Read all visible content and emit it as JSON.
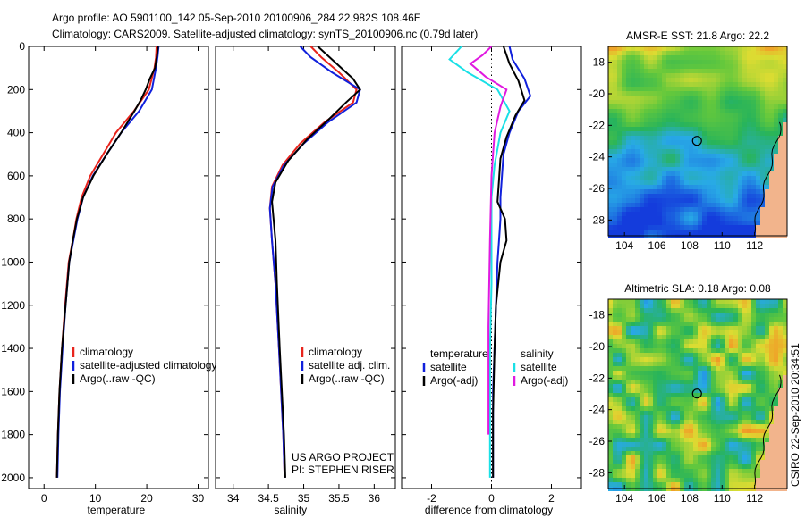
{
  "header": {
    "line1": "Argo profile: AO 5901100_142 05-Sep-2010 20100906_284 22.982S 108.46E",
    "line2": "Climatology: CARS2009. Satellite-adjusted climatology: synTS_20100906.nc (0.79d later)"
  },
  "colors": {
    "climatology": "#e8241c",
    "satellite": "#1020dc",
    "argo": "#000000",
    "cyan": "#19e0e6",
    "magenta": "#e019e0",
    "circle": "#000000"
  },
  "chart_data": [
    {
      "type": "line",
      "xlabel": "temperature",
      "ylabel": "",
      "xlim": [
        -3,
        32
      ],
      "ylim": [
        2050,
        0
      ],
      "xticks": [
        "0",
        "10",
        "20",
        "30"
      ],
      "yticks": [
        "0",
        "200",
        "400",
        "600",
        "800",
        "1000",
        "1200",
        "1400",
        "1600",
        "1800",
        "2000"
      ],
      "legend": [
        "climatology",
        "satellite-adjusted climatology",
        "Argo(..raw -QC)"
      ],
      "series": [
        {
          "name": "climatology",
          "color_key": "climatology",
          "x": [
            21.9,
            21.8,
            21.5,
            20.4,
            17.5,
            14.0,
            11.5,
            9.0,
            7.3,
            6.3,
            5.6,
            4.8,
            4.1,
            3.5,
            3.0,
            2.7,
            2.5
          ],
          "y": [
            0,
            50,
            100,
            200,
            300,
            400,
            500,
            600,
            700,
            800,
            900,
            1000,
            1200,
            1400,
            1600,
            1800,
            2000
          ]
        },
        {
          "name": "satellite-adjusted climatology",
          "color_key": "satellite",
          "x": [
            22.3,
            22.1,
            21.8,
            21.0,
            18.5,
            15.0,
            12.2,
            9.5,
            7.6,
            6.5,
            5.7,
            4.9,
            4.2,
            3.6,
            3.1,
            2.8,
            2.6
          ],
          "y": [
            0,
            50,
            100,
            200,
            300,
            400,
            500,
            600,
            700,
            800,
            900,
            1000,
            1200,
            1400,
            1600,
            1800,
            2000
          ]
        },
        {
          "name": "Argo(..raw -QC)",
          "color_key": "argo",
          "x": [
            22.2,
            22.0,
            21.6,
            20.6,
            19.8,
            18.8,
            17.6,
            15.0,
            12.2,
            9.6,
            7.6,
            6.4,
            5.6,
            4.9,
            4.2,
            3.5,
            3.0,
            2.7,
            2.5
          ],
          "y": [
            0,
            40,
            100,
            150,
            200,
            250,
            300,
            400,
            500,
            600,
            700,
            800,
            900,
            1000,
            1200,
            1400,
            1600,
            1800,
            2000
          ]
        }
      ]
    },
    {
      "type": "line",
      "xlabel": "salinity",
      "xlim": [
        33.75,
        36.3
      ],
      "ylim": [
        2050,
        0
      ],
      "xticks": [
        "34",
        "34.5",
        "35",
        "35.5",
        "36"
      ],
      "legend": [
        "climatology",
        "satellite adj. clim.",
        "Argo(..raw -QC)"
      ],
      "annotation": [
        "US ARGO PROJECT",
        "PI: STEPHEN RISER"
      ],
      "series": [
        {
          "name": "climatology",
          "color_key": "climatology",
          "x": [
            35.1,
            35.25,
            35.5,
            35.75,
            35.7,
            35.3,
            34.95,
            34.7,
            34.55,
            34.52,
            34.55,
            34.6,
            34.65,
            34.68,
            34.71,
            34.73
          ],
          "y": [
            0,
            50,
            120,
            200,
            260,
            350,
            450,
            550,
            650,
            750,
            900,
            1100,
            1400,
            1600,
            1800,
            2000
          ]
        },
        {
          "name": "satellite adj. clim.",
          "color_key": "satellite",
          "x": [
            34.95,
            35.1,
            35.4,
            35.8,
            35.75,
            35.35,
            35.0,
            34.72,
            34.56,
            34.52,
            34.55,
            34.6,
            34.65,
            34.68,
            34.71,
            34.73
          ],
          "y": [
            0,
            50,
            120,
            200,
            260,
            350,
            450,
            550,
            650,
            750,
            900,
            1100,
            1400,
            1600,
            1800,
            2000
          ]
        },
        {
          "name": "Argo(..raw -QC)",
          "color_key": "argo",
          "x": [
            35.2,
            35.4,
            35.7,
            35.8,
            35.6,
            35.35,
            35.05,
            34.78,
            34.6,
            34.55,
            34.6,
            34.62,
            34.66,
            34.69,
            34.72,
            34.74
          ],
          "y": [
            0,
            60,
            150,
            200,
            260,
            340,
            430,
            530,
            630,
            720,
            900,
            1100,
            1400,
            1600,
            1800,
            2000
          ]
        }
      ]
    },
    {
      "type": "line",
      "xlabel": "difference from climatology",
      "xlim": [
        -3,
        3
      ],
      "ylim": [
        2050,
        0
      ],
      "xticks": [
        "-2",
        "0",
        "2"
      ],
      "legend_temperature": [
        "temperature",
        "satellite",
        "Argo(-adj)"
      ],
      "legend_salinity": [
        "salinity",
        "satellite",
        "Argo(-adj)"
      ],
      "series": [
        {
          "name": "satellite",
          "color_key": "satellite",
          "x": [
            0.6,
            0.7,
            1.1,
            1.3,
            0.9,
            0.6,
            0.4,
            0.35,
            0.3,
            0.3,
            0.25,
            0.2,
            0.15,
            0.1,
            0.05,
            0.05,
            0.05
          ],
          "y": [
            0,
            60,
            150,
            230,
            300,
            400,
            500,
            600,
            700,
            800,
            900,
            1000,
            1200,
            1400,
            1600,
            1800,
            2000
          ]
        },
        {
          "name": "Argo(-adj)",
          "color_key": "argo",
          "x": [
            0.4,
            0.6,
            0.9,
            1.1,
            0.8,
            0.5,
            0.3,
            0.25,
            0.2,
            0.45,
            0.5,
            0.3,
            0.15,
            0.1,
            0.05,
            0.05
          ],
          "y": [
            0,
            80,
            160,
            250,
            320,
            420,
            520,
            620,
            720,
            800,
            900,
            1000,
            1200,
            1400,
            1700,
            2000
          ]
        },
        {
          "name": "satellite",
          "color_key": "cyan",
          "x": [
            -1.0,
            -1.4,
            -0.8,
            0.2,
            0.6,
            0.3,
            0.1,
            0.0,
            0.0,
            0.0,
            -0.05,
            -0.05,
            -0.05
          ],
          "y": [
            0,
            60,
            120,
            200,
            300,
            400,
            550,
            700,
            900,
            1100,
            1400,
            1700,
            2000
          ]
        },
        {
          "name": "Argo(-adj)",
          "color_key": "magenta",
          "x": [
            0.0,
            -0.3,
            -0.7,
            -0.2,
            0.5,
            0.3,
            0.1,
            0.0,
            -0.05,
            -0.1,
            -0.1
          ],
          "y": [
            0,
            40,
            80,
            140,
            200,
            280,
            400,
            600,
            900,
            1300,
            1800
          ]
        }
      ]
    },
    {
      "type": "heatmap",
      "title": "AMSR-E SST: 21.8 Argo: 22.2",
      "xlim": [
        103,
        114
      ],
      "ylim": [
        -29,
        -17
      ],
      "xticks": [
        "104",
        "106",
        "108",
        "110",
        "112"
      ],
      "yticks": [
        "-18",
        "-20",
        "-22",
        "-24",
        "-26",
        "-28"
      ],
      "marker": {
        "lon": 108.46,
        "lat": -22.982
      }
    },
    {
      "type": "heatmap",
      "title": "Altimetric SLA: 0.18 Argo: 0.08",
      "xlim": [
        103,
        114
      ],
      "ylim": [
        -29,
        -17
      ],
      "xticks": [
        "104",
        "106",
        "108",
        "110",
        "112"
      ],
      "yticks": [
        "-18",
        "-20",
        "-22",
        "-24",
        "-26",
        "-28"
      ],
      "marker": {
        "lon": 108.46,
        "lat": -22.982
      }
    }
  ],
  "side_label": "CSIRO 22-Sep-2010 20:34:51"
}
